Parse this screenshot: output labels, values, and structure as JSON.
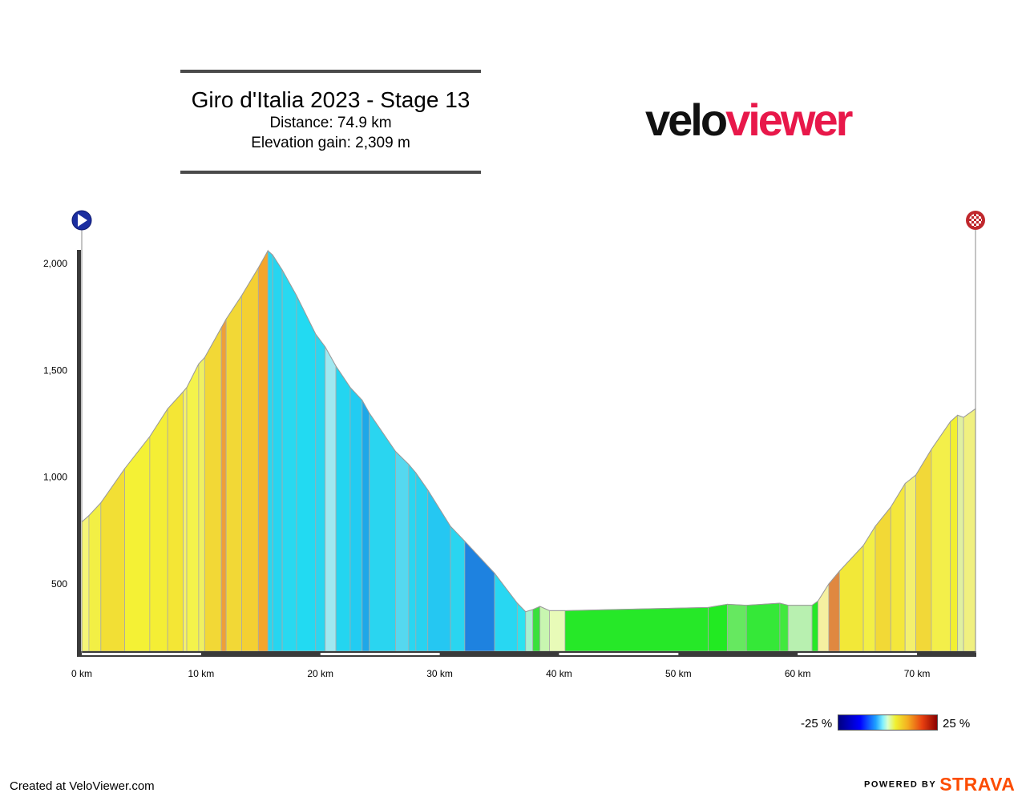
{
  "header": {
    "title": "Giro d'Italia 2023 - Stage 13",
    "distance": "Distance: 74.9 km",
    "elevation_gain": "Elevation gain: 2,309 m"
  },
  "logo": {
    "part1": "velo",
    "part2": "viewer"
  },
  "legend": {
    "min_label": "-25 %",
    "max_label": "25 %"
  },
  "footer": {
    "created": "Created at VeloViewer.com",
    "powered_by": "POWERED BY",
    "strava": "STRAVA"
  },
  "icons": {
    "start": "start-play-icon",
    "finish": "finish-checkered-flag-icon"
  },
  "chart_data": {
    "type": "area",
    "title": "Giro d'Italia 2023 - Stage 13",
    "xlabel": "",
    "ylabel": "",
    "x_unit": "km",
    "xlim": [
      0,
      74.9
    ],
    "ylim": [
      180,
      2100
    ],
    "x_ticks": [
      0,
      10,
      20,
      30,
      40,
      50,
      60,
      70
    ],
    "x_tick_labels": [
      "0 km",
      "10 km",
      "20 km",
      "30 km",
      "40 km",
      "50 km",
      "60 km",
      "70 km"
    ],
    "y_ticks": [
      500,
      1000,
      1500,
      2000
    ],
    "y_tick_labels": [
      "500",
      "1,000",
      "1,500",
      "2,000"
    ],
    "grid": false,
    "gradient_scale": [
      -25,
      25
    ],
    "profile": [
      [
        0,
        790
      ],
      [
        0.6,
        820
      ],
      [
        1.6,
        880
      ],
      [
        3.6,
        1040
      ],
      [
        5.7,
        1190
      ],
      [
        7.2,
        1320
      ],
      [
        8.5,
        1400
      ],
      [
        8.8,
        1420
      ],
      [
        9.8,
        1530
      ],
      [
        10.3,
        1560
      ],
      [
        11.7,
        1700
      ],
      [
        12.1,
        1740
      ],
      [
        13.4,
        1850
      ],
      [
        14.8,
        1980
      ],
      [
        15.6,
        2060
      ],
      [
        16.0,
        2040
      ],
      [
        16.8,
        1970
      ],
      [
        18.0,
        1850
      ],
      [
        19.6,
        1670
      ],
      [
        20.4,
        1610
      ],
      [
        21.3,
        1520
      ],
      [
        22.5,
        1420
      ],
      [
        23.5,
        1360
      ],
      [
        24.1,
        1300
      ],
      [
        26.3,
        1120
      ],
      [
        27.4,
        1060
      ],
      [
        28.0,
        1020
      ],
      [
        29.0,
        940
      ],
      [
        30.9,
        770
      ],
      [
        32.1,
        700
      ],
      [
        34.6,
        550
      ],
      [
        36.5,
        410
      ],
      [
        37.2,
        370
      ],
      [
        37.8,
        380
      ],
      [
        38.4,
        395
      ],
      [
        39.2,
        375
      ],
      [
        40.5,
        375
      ],
      [
        52.5,
        390
      ],
      [
        54.1,
        405
      ],
      [
        55.7,
        400
      ],
      [
        58.5,
        410
      ],
      [
        59.2,
        400
      ],
      [
        61.2,
        400
      ],
      [
        61.7,
        420
      ],
      [
        62.6,
        500
      ],
      [
        63.5,
        560
      ],
      [
        65.5,
        680
      ],
      [
        66.5,
        770
      ],
      [
        67.8,
        860
      ],
      [
        69.0,
        970
      ],
      [
        69.9,
        1010
      ],
      [
        71.2,
        1130
      ],
      [
        72.8,
        1260
      ],
      [
        73.4,
        1290
      ],
      [
        73.9,
        1280
      ],
      [
        74.9,
        1320
      ]
    ],
    "segment_colors": [
      "#f5f577",
      "#f2ef45",
      "#f2df35",
      "#f4f135",
      "#f4ee35",
      "#f4e635",
      "#f5f06d",
      "#f4f34b",
      "#f0f060",
      "#f2d836",
      "#ef9f38",
      "#f2d836",
      "#f4d032",
      "#f5a52c",
      "#2ad7f0",
      "#26d5f0",
      "#28d9f0",
      "#22daf2",
      "#2ad6f0",
      "#a0e8f0",
      "#24d5f0",
      "#22ccf2",
      "#1ea7e8",
      "#2ad5f0",
      "#55d8ef",
      "#2ad6f0",
      "#28d2f0",
      "#25c7f2",
      "#2ad5f0",
      "#1e82e0",
      "#28d7f2",
      "#2ce2f0",
      "#a8f0d0",
      "#39e03b",
      "#c8f6b0",
      "#e8fbb8",
      "#26e828",
      "#22ea22",
      "#66e860",
      "#35e838",
      "#42e83e",
      "#b8f0b0",
      "#26e826",
      "#f5f0a0",
      "#e08840",
      "#f2e838",
      "#f3ef45",
      "#f2d936",
      "#f4e73b",
      "#f4f06d",
      "#f2d838",
      "#f3ef4a",
      "#f2f030",
      "#e0f0a0",
      "#f0f080"
    ]
  }
}
